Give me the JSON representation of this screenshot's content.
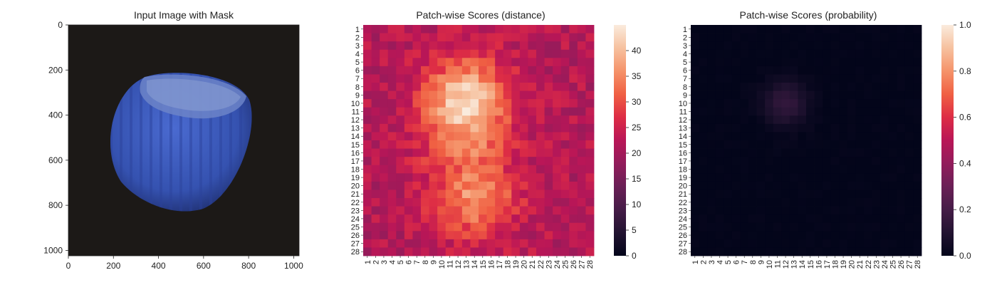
{
  "chart_data": [
    {
      "type": "image",
      "title": "Input Image with Mask",
      "xlim": [
        0,
        1024
      ],
      "ylim": [
        1024,
        0
      ],
      "xticks": [
        0,
        200,
        400,
        600,
        800,
        1000
      ],
      "yticks": [
        0,
        200,
        400,
        600,
        800,
        1000
      ],
      "background_color": "#1c1917",
      "object_color": "#3d5fbf",
      "object_description": "blue-tinted hazelnut on dark background"
    },
    {
      "type": "heatmap",
      "title": "Patch-wise Scores (distance)",
      "rows": 28,
      "cols": 28,
      "row_labels": [
        "1",
        "2",
        "3",
        "4",
        "5",
        "6",
        "7",
        "8",
        "9",
        "10",
        "11",
        "12",
        "13",
        "14",
        "15",
        "16",
        "17",
        "18",
        "19",
        "20",
        "21",
        "22",
        "23",
        "24",
        "25",
        "26",
        "27",
        "28"
      ],
      "col_labels": [
        "1",
        "2",
        "3",
        "4",
        "5",
        "6",
        "7",
        "8",
        "9",
        "10",
        "11",
        "12",
        "13",
        "14",
        "15",
        "16",
        "17",
        "18",
        "19",
        "20",
        "21",
        "22",
        "23",
        "24",
        "25",
        "26",
        "27",
        "28"
      ],
      "colormap": "rocket",
      "vmin": 0,
      "vmax": 45,
      "colorbar_ticks": [
        0,
        5,
        10,
        15,
        20,
        25,
        30,
        35,
        40
      ],
      "value_profile": {
        "background": 22,
        "blob_centers": [
          {
            "row": 10,
            "col": 13,
            "peak": 44
          },
          {
            "row": 15,
            "col": 13,
            "peak": 36
          },
          {
            "row": 21,
            "col": 14,
            "peak": 36
          }
        ]
      }
    },
    {
      "type": "heatmap",
      "title": "Patch-wise Scores (probability)",
      "rows": 28,
      "cols": 28,
      "row_labels": [
        "1",
        "2",
        "3",
        "4",
        "5",
        "6",
        "7",
        "8",
        "9",
        "10",
        "11",
        "12",
        "13",
        "14",
        "15",
        "16",
        "17",
        "18",
        "19",
        "20",
        "21",
        "22",
        "23",
        "24",
        "25",
        "26",
        "27",
        "28"
      ],
      "col_labels": [
        "1",
        "2",
        "3",
        "4",
        "5",
        "6",
        "7",
        "8",
        "9",
        "10",
        "11",
        "12",
        "13",
        "14",
        "15",
        "16",
        "17",
        "18",
        "19",
        "20",
        "21",
        "22",
        "23",
        "24",
        "25",
        "26",
        "27",
        "28"
      ],
      "colormap": "rocket",
      "vmin": 0.0,
      "vmax": 1.0,
      "colorbar_ticks": [
        0.0,
        0.2,
        0.4,
        0.6,
        0.8,
        1.0
      ],
      "colorbar_tick_labels": [
        "0.0",
        "0.2",
        "0.4",
        "0.6",
        "0.8",
        "1.0"
      ],
      "value_profile": {
        "background": 0.0,
        "blob_centers": [
          {
            "row": 10,
            "col": 12,
            "peak": 0.15
          }
        ]
      }
    }
  ]
}
